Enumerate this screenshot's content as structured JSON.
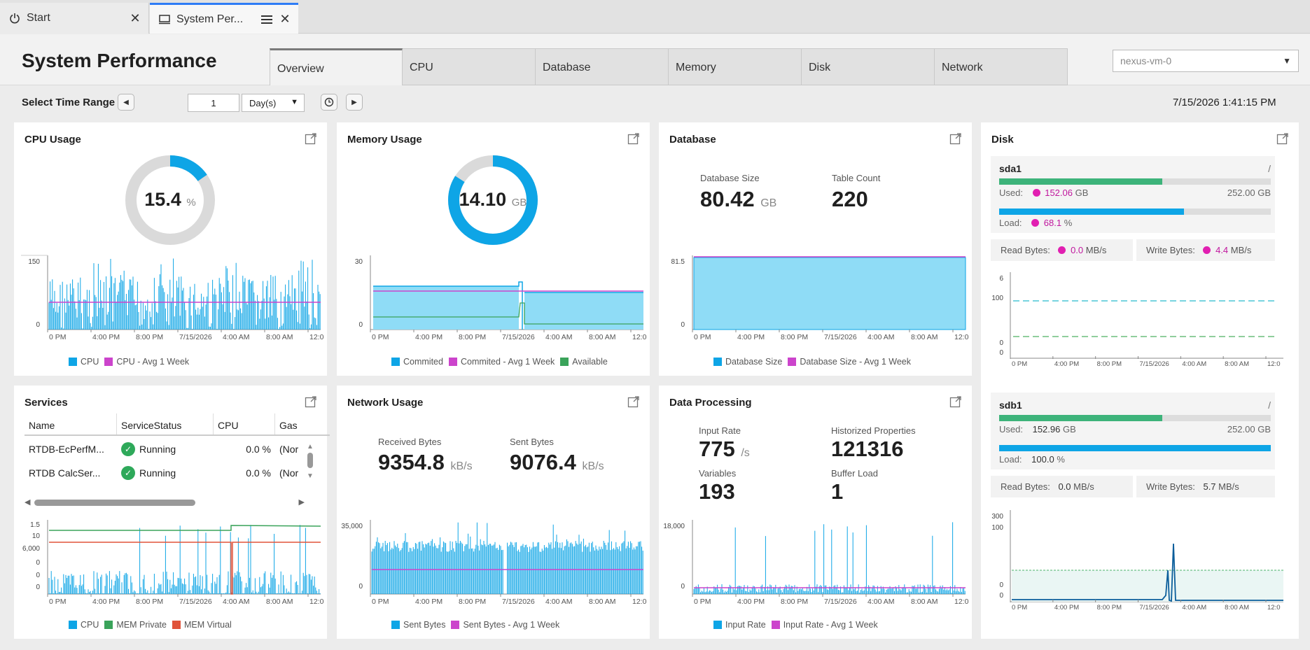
{
  "tabs": [
    {
      "label": "Start",
      "icon": "power-icon"
    },
    {
      "label": "System Per...",
      "icon": "monitor-icon"
    }
  ],
  "header": {
    "title": "System Performance",
    "view_tabs": [
      "Overview",
      "CPU",
      "Database",
      "Memory",
      "Disk",
      "Network"
    ],
    "active_tab": "Overview",
    "machine": "nexus-vm-0"
  },
  "toolbar": {
    "time_range_label": "Select Time Range",
    "amount": "1",
    "unit": "Day(s)",
    "timestamp": "7/15/2026 1:41:15 PM"
  },
  "time_ticks": [
    "0 PM",
    "4:00 PM",
    "8:00 PM",
    "7/15/2026",
    "4:00 AM",
    "8:00 AM",
    "12:0"
  ],
  "cpu": {
    "title": "CPU Usage",
    "value": "15.4",
    "unit": "%",
    "percent": 15.4,
    "y_max": "150",
    "y_min": "0",
    "legend": [
      "CPU",
      "CPU - Avg 1 Week"
    ]
  },
  "memory": {
    "title": "Memory Usage",
    "value": "14.10",
    "unit": "GB",
    "percent": 84,
    "y_max": "30",
    "y_min": "0",
    "legend": [
      "Commited",
      "Commited - Avg 1 Week",
      "Available"
    ]
  },
  "database": {
    "title": "Database",
    "size_label": "Database Size",
    "size_value": "80.42",
    "size_unit": "GB",
    "count_label": "Table Count",
    "count_value": "220",
    "y_max": "81.5",
    "y_min": "0",
    "legend": [
      "Database Size",
      "Database Size - Avg 1 Week"
    ]
  },
  "disk": {
    "title": "Disk",
    "sda1": {
      "name": "sda1",
      "mount": "/",
      "used_label": "Used:",
      "used": "152.06",
      "used_unit": "GB",
      "total": "252.00 GB",
      "used_fraction": 0.6,
      "load_label": "Load:",
      "load": "68.1",
      "load_unit": "%",
      "load_fraction": 0.681,
      "read_label": "Read Bytes:",
      "read": "0.0",
      "read_unit": "MB/s",
      "write_label": "Write Bytes:",
      "write": "4.4",
      "write_unit": "MB/s",
      "axis": [
        "6",
        "100",
        "0",
        "0"
      ]
    },
    "sdb1": {
      "name": "sdb1",
      "mount": "/",
      "used_label": "Used:",
      "used": "152.96",
      "used_unit": "GB",
      "total": "252.00 GB",
      "used_fraction": 0.6,
      "load_label": "Load:",
      "load": "100.0",
      "load_unit": "%",
      "load_fraction": 1.0,
      "read_label": "Read Bytes:",
      "read": "0.0",
      "read_unit": "MB/s",
      "write_label": "Write Bytes:",
      "write": "5.7",
      "write_unit": "MB/s",
      "axis": [
        "300",
        "100",
        "0",
        "0"
      ]
    }
  },
  "services": {
    "title": "Services",
    "columns": [
      "Name",
      "ServiceStatus",
      "CPU",
      "Gas"
    ],
    "rows": [
      {
        "name": "RTDB-EcPerfM...",
        "status": "Running",
        "cpu": "0.0 %",
        "gas": "(Nor"
      },
      {
        "name": "RTDB CalcSer...",
        "status": "Running",
        "cpu": "0.0 %",
        "gas": "(Nor"
      }
    ],
    "axis": [
      "1.5",
      "10",
      "6,000",
      "0",
      "0",
      "0"
    ],
    "legend": [
      "CPU",
      "MEM Private",
      "MEM Virtual"
    ]
  },
  "network": {
    "title": "Network Usage",
    "recv_label": "Received Bytes",
    "recv_value": "9354.8",
    "recv_unit": "kB/s",
    "sent_label": "Sent Bytes",
    "sent_value": "9076.4",
    "sent_unit": "kB/s",
    "y_max": "35,000",
    "y_min": "0",
    "legend": [
      "Sent Bytes",
      "Sent Bytes - Avg 1 Week"
    ]
  },
  "processing": {
    "title": "Data Processing",
    "input_label": "Input Rate",
    "input_value": "775",
    "input_unit": "/s",
    "hist_label": "Historized Properties",
    "hist_value": "121316",
    "vars_label": "Variables",
    "vars_value": "193",
    "buffer_label": "Buffer Load",
    "buffer_value": "1",
    "y_max": "18,000",
    "y_min": "0",
    "legend": [
      "Input Rate",
      "Input Rate - Avg 1 Week"
    ]
  },
  "colors": {
    "blue": "#0ea5e6",
    "light_blue": "#8fdcf6",
    "magenta": "#cc44cc",
    "green": "#3aa35a",
    "red": "#e0533a",
    "pink_alert": "#e11fb1",
    "gauge_bg": "#dadada"
  }
}
